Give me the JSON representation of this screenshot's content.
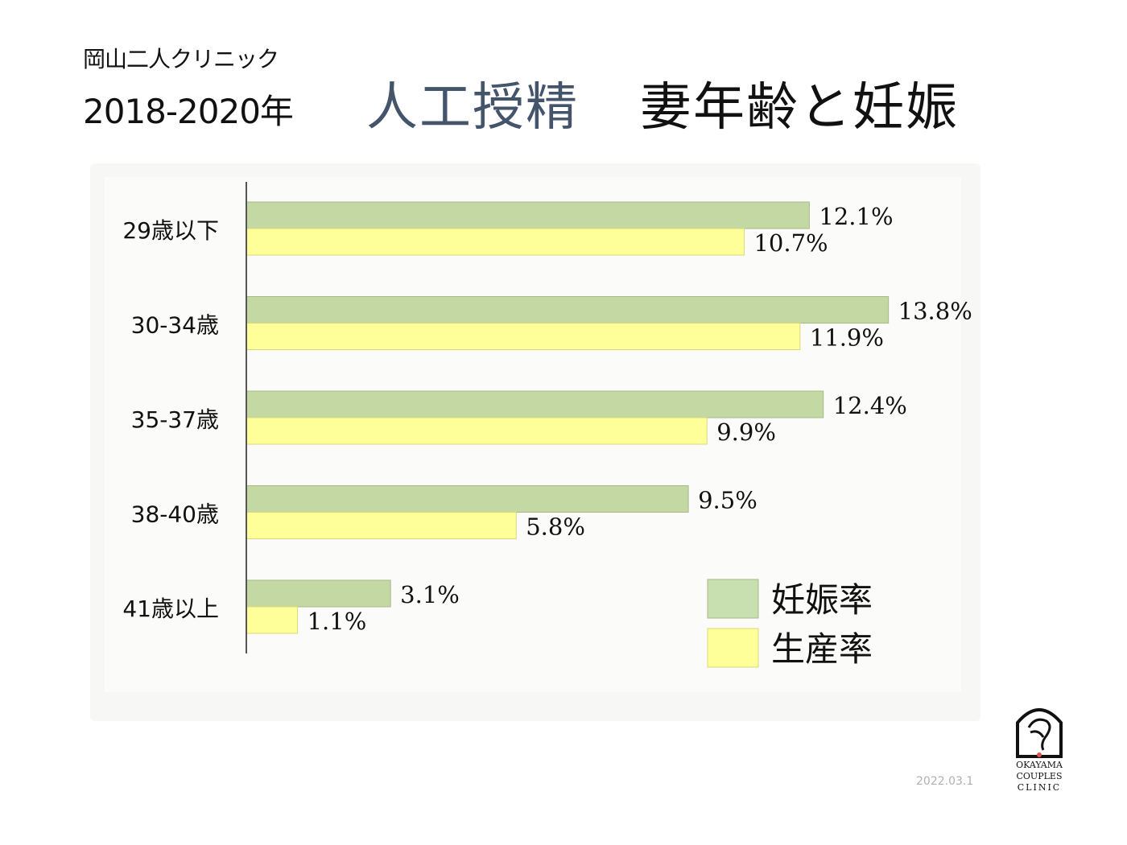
{
  "header": {
    "clinic_name": "岡山二人クリニック",
    "year": "2018-2020年",
    "title_main": "人工授精",
    "title_sub": "妻年齢と妊娠"
  },
  "footer": {
    "date": "2022.03.1",
    "logo_lines": [
      "OKAYAMA",
      "COUPLES",
      "CLINIC"
    ]
  },
  "colors": {
    "pregnancy": "#c4d8a4",
    "birth": "#ffff99",
    "title_accent": "#44546a"
  },
  "chart_data": {
    "type": "bar",
    "orientation": "horizontal",
    "categories": [
      "29歳以下",
      "30-34歳",
      "35-37歳",
      "38-40歳",
      "41歳以上"
    ],
    "series": [
      {
        "name": "妊娠率",
        "values": [
          12.1,
          13.8,
          12.4,
          9.5,
          3.1
        ],
        "labels": [
          "12.1%",
          "13.8%",
          "12.4%",
          "9.5%",
          "3.1%"
        ]
      },
      {
        "name": "生産率",
        "values": [
          10.7,
          11.9,
          9.9,
          5.8,
          1.1
        ],
        "labels": [
          "10.7%",
          "11.9%",
          "9.9%",
          "5.8%",
          "1.1%"
        ]
      }
    ],
    "unit": "%",
    "xlim": [
      0,
      15.5
    ],
    "grid": false,
    "legend_position": "bottom-right"
  }
}
